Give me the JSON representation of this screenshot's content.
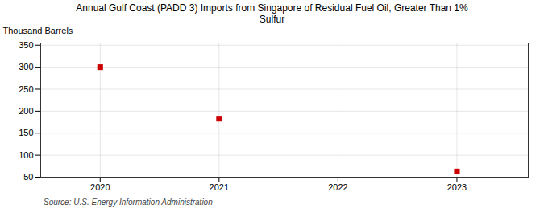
{
  "chart_data": {
    "type": "scatter",
    "title": "Annual Gulf Coast (PADD 3) Imports from Singapore of Residual Fuel Oil, Greater Than 1%\nSulfur",
    "y_label": "Thousand Barrels",
    "source": "Source: U.S. Energy Information Administration",
    "x": [
      2020,
      2021,
      2022,
      2023
    ],
    "values": [
      300,
      183,
      null,
      63
    ],
    "color": "#cc0000",
    "marker": "square",
    "xlim": [
      2019.5,
      2023.6
    ],
    "ylim": [
      50,
      355
    ],
    "xticks": [
      2020,
      2021,
      2022,
      2023
    ],
    "yticks": [
      50,
      100,
      150,
      200,
      250,
      300,
      350
    ],
    "grid": true
  }
}
